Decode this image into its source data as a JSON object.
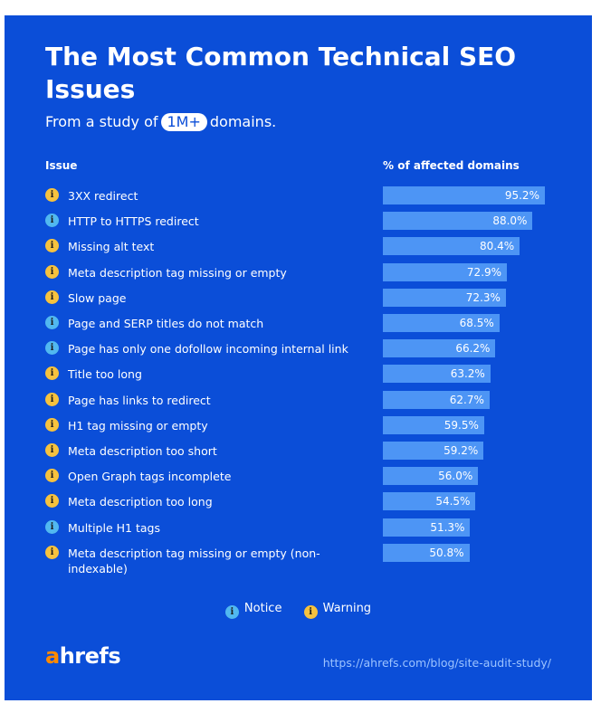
{
  "header": {
    "title": "The Most Common Technical SEO Issues",
    "subtitle_prefix": "From a study of",
    "subtitle_highlight": "1M+",
    "subtitle_suffix": "domains."
  },
  "columns": {
    "issue": "Issue",
    "value": "% of affected domains"
  },
  "icon_glyph": "i",
  "colors": {
    "background": "#0b4ed8",
    "bar": "#4d95f5",
    "warning": "#f6c23e",
    "notice": "#51b8f0",
    "logo_accent": "#ff8a00"
  },
  "legend": {
    "notice": "Notice",
    "warning": "Warning"
  },
  "footer": {
    "logo_a": "a",
    "logo_rest": "hrefs",
    "url": "https://ahrefs.com/blog/site-audit-study/"
  },
  "chart_data": {
    "type": "bar",
    "orientation": "horizontal",
    "title": "The Most Common Technical SEO Issues",
    "xlim": [
      0,
      100
    ],
    "categories": [
      "3XX redirect",
      "HTTP to HTTPS redirect",
      "Missing alt text",
      "Meta description tag missing or empty",
      "Slow page",
      "Page and SERP titles do not match",
      "Page has only one dofollow incoming internal link",
      "Title too long",
      "Page has links to redirect",
      "H1 tag missing or empty",
      "Meta description too short",
      "Open Graph tags incomplete",
      "Meta description too long",
      "Multiple H1 tags",
      "Meta description tag missing or empty (non-indexable)"
    ],
    "values": [
      95.2,
      88.0,
      80.4,
      72.9,
      72.3,
      68.5,
      66.2,
      63.2,
      62.7,
      59.5,
      59.2,
      56.0,
      54.5,
      51.3,
      50.8
    ],
    "value_labels": [
      "95.2%",
      "88.0%",
      "80.4%",
      "72.9%",
      "72.3%",
      "68.5%",
      "66.2%",
      "63.2%",
      "62.7%",
      "59.5%",
      "59.2%",
      "56.0%",
      "54.5%",
      "51.3%",
      "50.8%"
    ],
    "severity": [
      "warning",
      "notice",
      "warning",
      "warning",
      "warning",
      "notice",
      "notice",
      "warning",
      "warning",
      "warning",
      "warning",
      "warning",
      "warning",
      "notice",
      "warning"
    ]
  }
}
